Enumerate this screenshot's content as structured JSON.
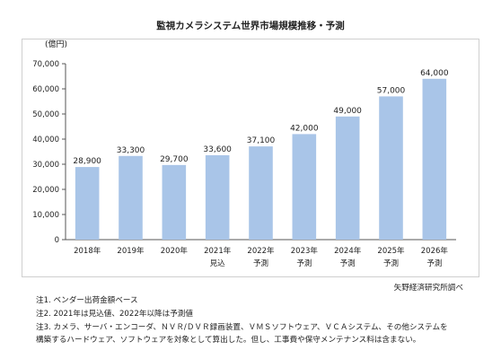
{
  "chart_data": {
    "type": "bar",
    "title": "監視カメラシステム世界市場規模推移・予測",
    "ylabel": "(億円)",
    "xlabel": "",
    "ylim": [
      0,
      70000
    ],
    "yticks": [
      "0",
      "10,000",
      "20,000",
      "30,000",
      "40,000",
      "50,000",
      "60,000",
      "70,000"
    ],
    "grid": false,
    "legend": "none",
    "bar_color": "#a9c5e8",
    "categories": [
      [
        "2018年",
        ""
      ],
      [
        "2019年",
        ""
      ],
      [
        "2020年",
        ""
      ],
      [
        "2021年",
        "見込"
      ],
      [
        "2022年",
        "予測"
      ],
      [
        "2023年",
        "予測"
      ],
      [
        "2024年",
        "予測"
      ],
      [
        "2025年",
        "予測"
      ],
      [
        "2026年",
        "予測"
      ]
    ],
    "values": [
      28900,
      33300,
      29700,
      33600,
      37100,
      42000,
      49000,
      57000,
      64000
    ],
    "value_labels": [
      "28,900",
      "33,300",
      "29,700",
      "33,600",
      "37,100",
      "42,000",
      "49,000",
      "57,000",
      "64,000"
    ]
  },
  "source": "矢野経済研究所調べ",
  "notes": [
    "注1.  ベンダー出荷金額ベース",
    "注2.  2021年は見込値、2022年以降は予測値",
    "注3.  カメラ、サーバ・エンコーダ、ＮＶＲ/ＤＶＲ録画装置、ＶＭＳソフトウェア、ＶＣＡシステム、その他システムを",
    "       構築するハードウェア、ソフトウェアを対象として算出した。但し、工事費や保守メンテナンス料は含まない。"
  ]
}
